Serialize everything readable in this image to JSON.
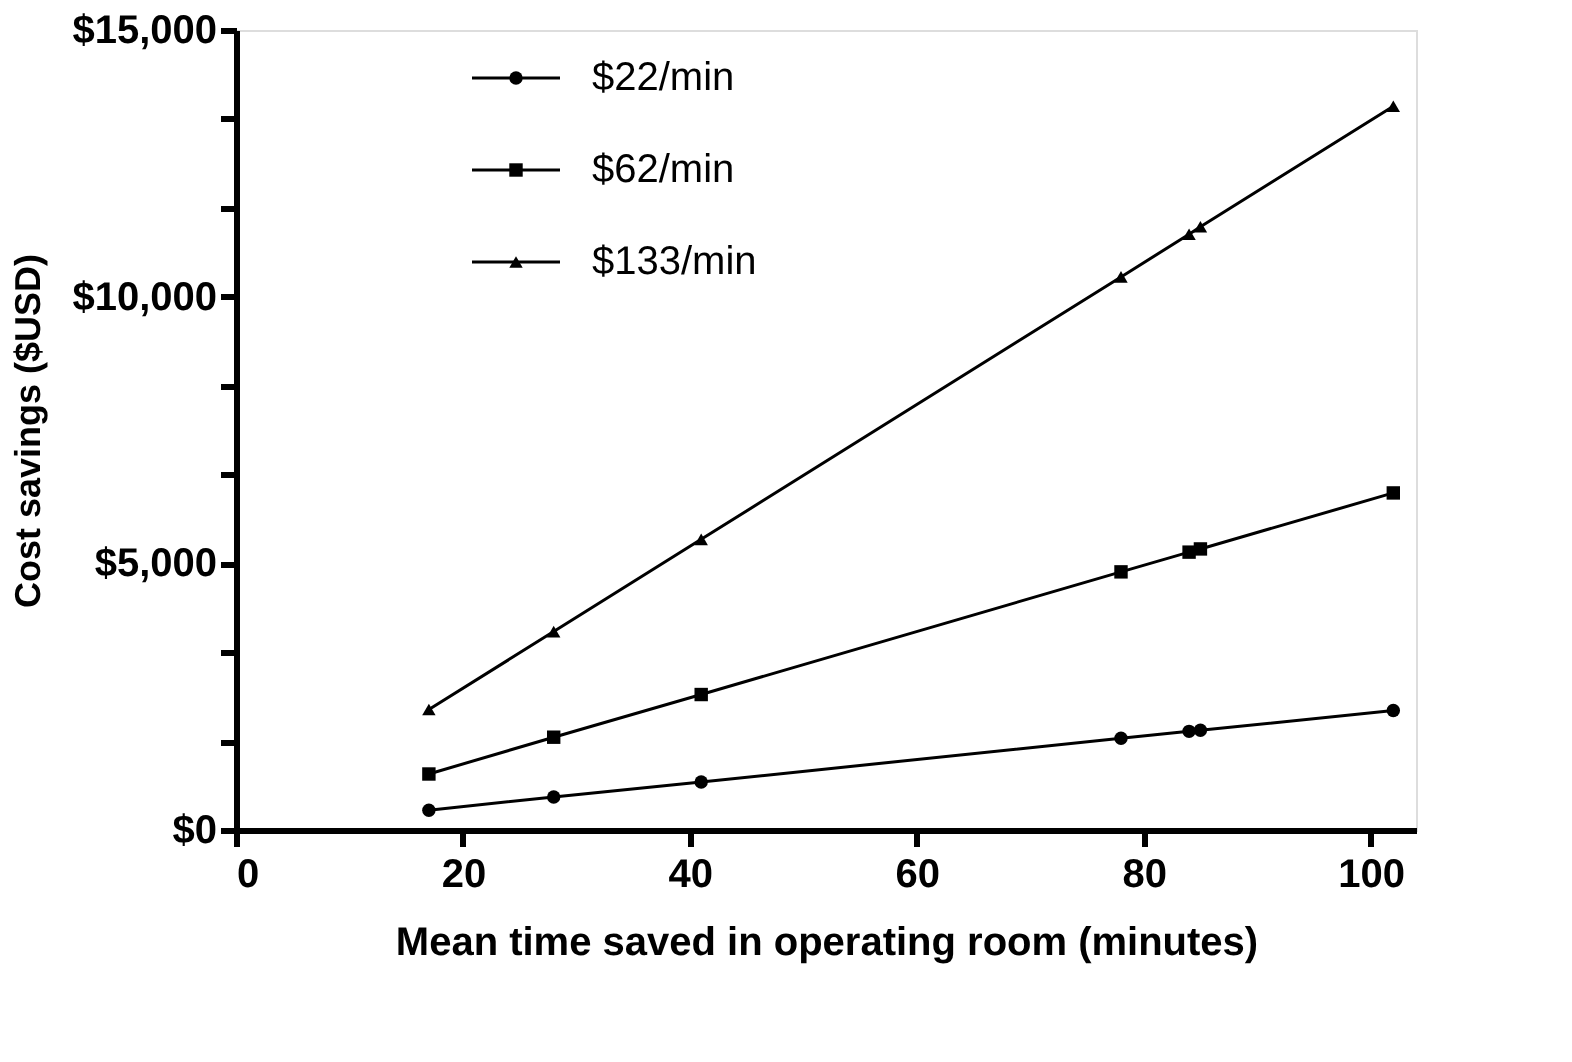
{
  "chart_data": {
    "type": "line",
    "xlabel": "Mean time saved in operating room (minutes)",
    "ylabel": "Cost savings ($USD)",
    "x": [
      17,
      28,
      41,
      78,
      84,
      85,
      102
    ],
    "series": [
      {
        "name": "$22/min",
        "color": "#000000",
        "marker": "circle",
        "values": [
          370,
          620,
          900,
          1720,
          1850,
          1870,
          2240
        ]
      },
      {
        "name": "$62/min",
        "color": "#000000",
        "marker": "square",
        "values": [
          1050,
          1740,
          2540,
          4840,
          5210,
          5270,
          6320
        ]
      },
      {
        "name": "$133/min",
        "color": "#000000",
        "marker": "triangle",
        "values": [
          2260,
          3720,
          5450,
          10370,
          11170,
          11310,
          13570
        ]
      }
    ],
    "xlim": [
      0,
      104
    ],
    "xticks": [
      0,
      20,
      40,
      60,
      80,
      100
    ],
    "ylim": [
      0,
      15000
    ],
    "yticks": [
      {
        "value": 0,
        "label": "$0"
      },
      {
        "value": 1667,
        "label": null
      },
      {
        "value": 3333,
        "label": null
      },
      {
        "value": 5000,
        "label": "$5,000"
      },
      {
        "value": 6667,
        "label": null
      },
      {
        "value": 8333,
        "label": null
      },
      {
        "value": 10000,
        "label": "$10,000"
      },
      {
        "value": 11667,
        "label": null
      },
      {
        "value": 13333,
        "label": null
      },
      {
        "value": 15000,
        "label": "$15,000"
      }
    ],
    "grid": false,
    "legend": "top left",
    "line_style": "solid"
  }
}
